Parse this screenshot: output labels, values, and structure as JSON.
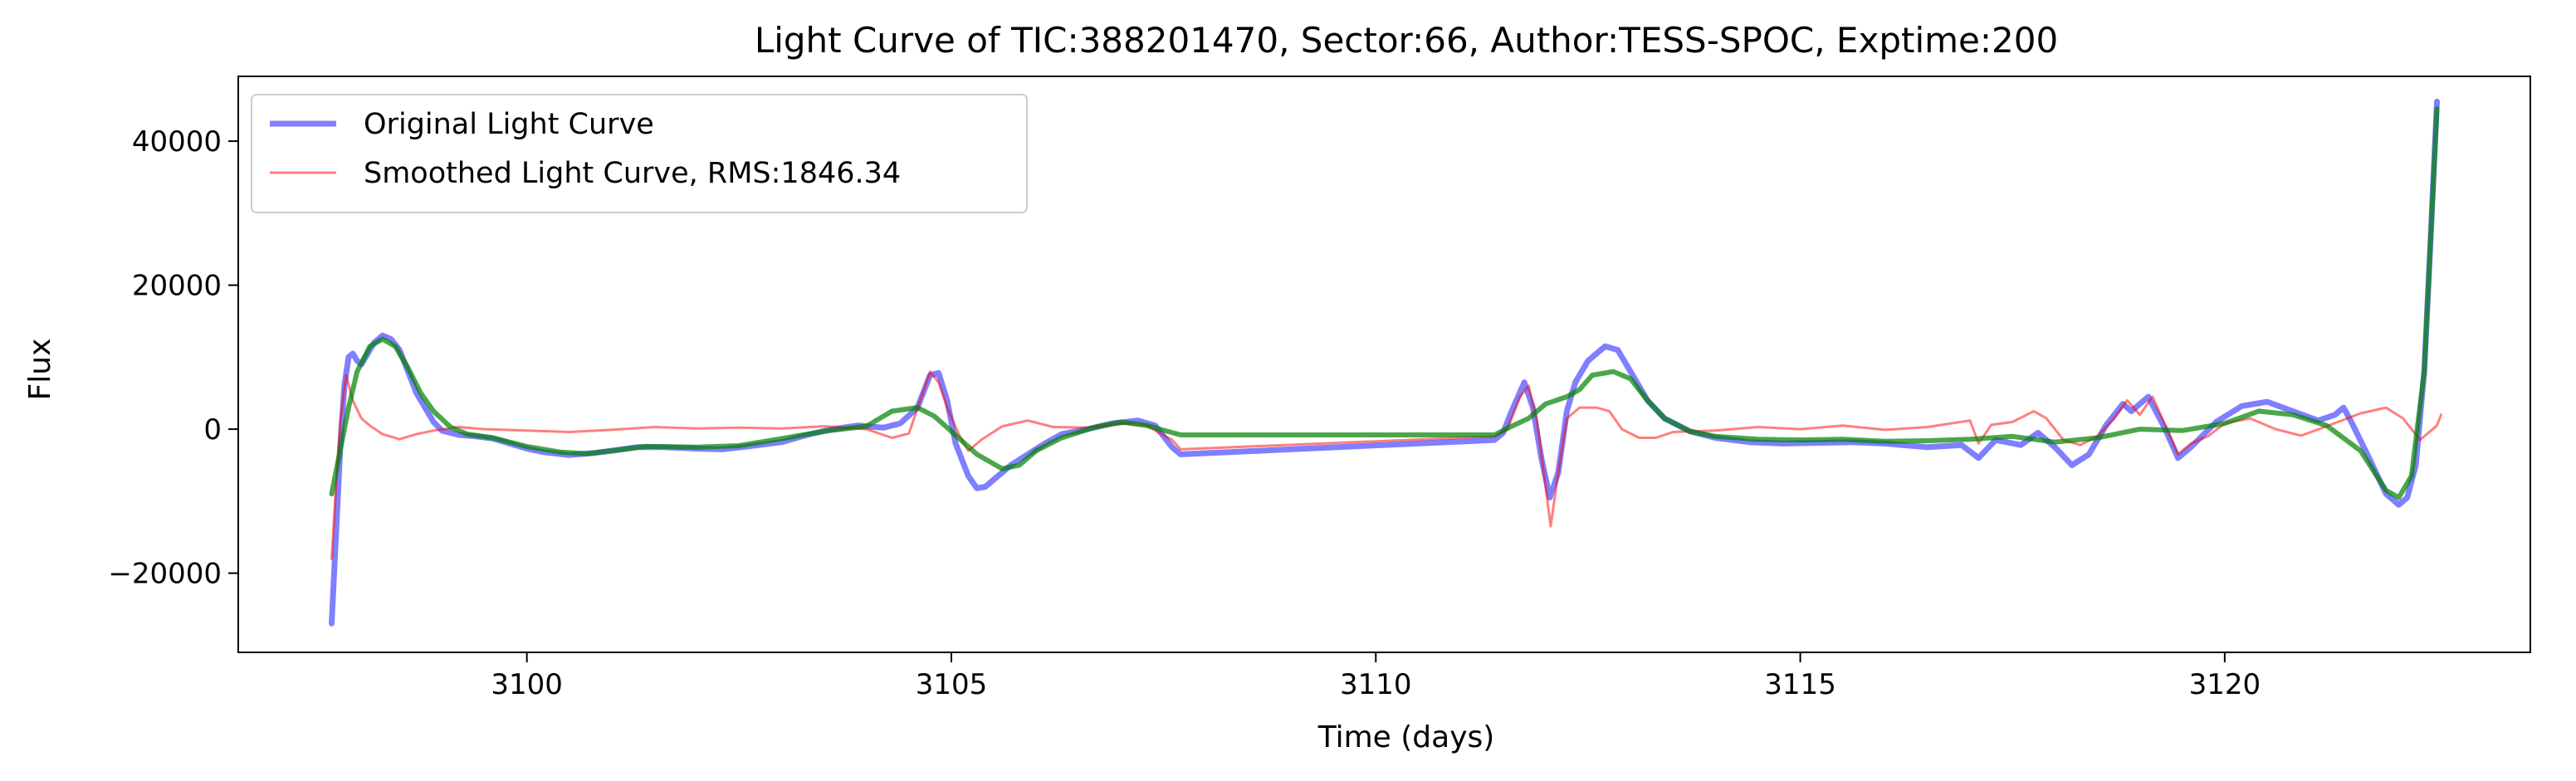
{
  "chart_data": {
    "type": "line",
    "title": "Light Curve of TIC:388201470, Sector:66, Author:TESS-SPOC, Exptime:200",
    "xlabel": "Time (days)",
    "ylabel": "Flux",
    "xlim": [
      3096.6,
      3123.6
    ],
    "ylim": [
      -31000,
      49000
    ],
    "xticks": [
      3100,
      3105,
      3110,
      3115,
      3120
    ],
    "yticks": [
      -20000,
      0,
      20000,
      40000
    ],
    "grid": false,
    "legend_position": "top-left",
    "series": [
      {
        "name": "Original Light Curve",
        "color": "#0000ff",
        "opacity": 0.5,
        "in_legend": true,
        "points": [
          [
            3097.7,
            -27000
          ],
          [
            3097.75,
            -15000
          ],
          [
            3097.8,
            -3000
          ],
          [
            3097.85,
            6000
          ],
          [
            3097.9,
            10000
          ],
          [
            3097.95,
            10500
          ],
          [
            3098.0,
            9500
          ],
          [
            3098.05,
            9000
          ],
          [
            3098.1,
            10000
          ],
          [
            3098.2,
            12000
          ],
          [
            3098.3,
            13000
          ],
          [
            3098.4,
            12500
          ],
          [
            3098.5,
            11000
          ],
          [
            3098.6,
            8000
          ],
          [
            3098.7,
            5000
          ],
          [
            3098.8,
            3000
          ],
          [
            3098.9,
            1000
          ],
          [
            3099.0,
            -200
          ],
          [
            3099.2,
            -800
          ],
          [
            3099.4,
            -1000
          ],
          [
            3099.6,
            -1300
          ],
          [
            3099.8,
            -2000
          ],
          [
            3100.0,
            -2700
          ],
          [
            3100.2,
            -3200
          ],
          [
            3100.5,
            -3600
          ],
          [
            3100.8,
            -3300
          ],
          [
            3101.0,
            -3000
          ],
          [
            3101.3,
            -2500
          ],
          [
            3101.6,
            -2500
          ],
          [
            3102.0,
            -2700
          ],
          [
            3102.3,
            -2800
          ],
          [
            3102.6,
            -2400
          ],
          [
            3103.0,
            -1800
          ],
          [
            3103.3,
            -800
          ],
          [
            3103.6,
            0
          ],
          [
            3103.9,
            500
          ],
          [
            3104.0,
            400
          ],
          [
            3104.2,
            200
          ],
          [
            3104.4,
            800
          ],
          [
            3104.6,
            3000
          ],
          [
            3104.75,
            7500
          ],
          [
            3104.85,
            7800
          ],
          [
            3104.95,
            4000
          ],
          [
            3105.05,
            -2000
          ],
          [
            3105.2,
            -6500
          ],
          [
            3105.3,
            -8200
          ],
          [
            3105.4,
            -8000
          ],
          [
            3105.5,
            -7000
          ],
          [
            3105.7,
            -5000
          ],
          [
            3105.9,
            -3500
          ],
          [
            3106.1,
            -2000
          ],
          [
            3106.3,
            -700
          ],
          [
            3106.6,
            0
          ],
          [
            3106.9,
            800
          ],
          [
            3107.2,
            1200
          ],
          [
            3107.4,
            500
          ],
          [
            3107.6,
            -2500
          ],
          [
            3107.7,
            -3500
          ],
          [
            3111.4,
            -1500
          ],
          [
            3111.5,
            -500
          ],
          [
            3111.6,
            2500
          ],
          [
            3111.75,
            6500
          ],
          [
            3111.85,
            3000
          ],
          [
            3111.95,
            -4000
          ],
          [
            3112.05,
            -9500
          ],
          [
            3112.15,
            -6000
          ],
          [
            3112.25,
            2500
          ],
          [
            3112.35,
            6500
          ],
          [
            3112.5,
            9500
          ],
          [
            3112.7,
            11500
          ],
          [
            3112.85,
            11000
          ],
          [
            3113.0,
            8000
          ],
          [
            3113.2,
            4000
          ],
          [
            3113.4,
            1500
          ],
          [
            3113.7,
            -300
          ],
          [
            3114.0,
            -1200
          ],
          [
            3114.4,
            -1800
          ],
          [
            3114.8,
            -2000
          ],
          [
            3115.2,
            -1900
          ],
          [
            3115.6,
            -1800
          ],
          [
            3116.0,
            -2000
          ],
          [
            3116.5,
            -2500
          ],
          [
            3116.9,
            -2200
          ],
          [
            3117.1,
            -4000
          ],
          [
            3117.3,
            -1500
          ],
          [
            3117.6,
            -2200
          ],
          [
            3117.8,
            -500
          ],
          [
            3118.0,
            -2500
          ],
          [
            3118.2,
            -5000
          ],
          [
            3118.4,
            -3500
          ],
          [
            3118.6,
            500
          ],
          [
            3118.8,
            3500
          ],
          [
            3118.9,
            2500
          ],
          [
            3119.1,
            4500
          ],
          [
            3119.3,
            0
          ],
          [
            3119.45,
            -4000
          ],
          [
            3119.6,
            -2500
          ],
          [
            3119.9,
            1000
          ],
          [
            3120.2,
            3200
          ],
          [
            3120.5,
            3800
          ],
          [
            3120.8,
            2500
          ],
          [
            3121.1,
            1200
          ],
          [
            3121.3,
            2000
          ],
          [
            3121.4,
            3000
          ],
          [
            3121.5,
            800
          ],
          [
            3121.7,
            -4000
          ],
          [
            3121.9,
            -9000
          ],
          [
            3122.05,
            -10500
          ],
          [
            3122.15,
            -9500
          ],
          [
            3122.25,
            -5000
          ],
          [
            3122.35,
            8000
          ],
          [
            3122.42,
            25000
          ],
          [
            3122.5,
            45500
          ]
        ]
      },
      {
        "name": "Smoothed Light Curve, RMS:1846.34",
        "color": "#ff0000",
        "opacity": 0.5,
        "in_legend": true,
        "points": [
          [
            3097.7,
            -18000
          ],
          [
            3097.75,
            -8000
          ],
          [
            3097.8,
            1000
          ],
          [
            3097.87,
            7500
          ],
          [
            3097.95,
            4000
          ],
          [
            3098.05,
            1500
          ],
          [
            3098.15,
            500
          ],
          [
            3098.3,
            -700
          ],
          [
            3098.5,
            -1400
          ],
          [
            3098.7,
            -700
          ],
          [
            3098.9,
            -200
          ],
          [
            3099.2,
            300
          ],
          [
            3099.5,
            0
          ],
          [
            3100.0,
            -200
          ],
          [
            3100.5,
            -400
          ],
          [
            3101.0,
            -100
          ],
          [
            3101.5,
            300
          ],
          [
            3102.0,
            100
          ],
          [
            3102.5,
            200
          ],
          [
            3103.0,
            100
          ],
          [
            3103.5,
            400
          ],
          [
            3104.0,
            0
          ],
          [
            3104.3,
            -1200
          ],
          [
            3104.5,
            -600
          ],
          [
            3104.75,
            8000
          ],
          [
            3104.85,
            6500
          ],
          [
            3104.95,
            3000
          ],
          [
            3105.1,
            -1000
          ],
          [
            3105.2,
            -3000
          ],
          [
            3105.35,
            -1500
          ],
          [
            3105.6,
            400
          ],
          [
            3105.9,
            1200
          ],
          [
            3106.2,
            300
          ],
          [
            3106.6,
            200
          ],
          [
            3107.0,
            800
          ],
          [
            3107.3,
            500
          ],
          [
            3107.6,
            -1500
          ],
          [
            3107.7,
            -2800
          ],
          [
            3111.4,
            -1000
          ],
          [
            3111.55,
            0
          ],
          [
            3111.7,
            4500
          ],
          [
            3111.8,
            6000
          ],
          [
            3111.9,
            1000
          ],
          [
            3112.0,
            -8000
          ],
          [
            3112.06,
            -13500
          ],
          [
            3112.15,
            -6000
          ],
          [
            3112.25,
            1500
          ],
          [
            3112.4,
            3000
          ],
          [
            3112.6,
            3000
          ],
          [
            3112.75,
            2500
          ],
          [
            3112.9,
            0
          ],
          [
            3113.1,
            -1200
          ],
          [
            3113.3,
            -1200
          ],
          [
            3113.5,
            -400
          ],
          [
            3114.0,
            -200
          ],
          [
            3114.5,
            300
          ],
          [
            3115.0,
            0
          ],
          [
            3115.5,
            500
          ],
          [
            3116.0,
            -100
          ],
          [
            3116.5,
            300
          ],
          [
            3117.0,
            1200
          ],
          [
            3117.1,
            -2000
          ],
          [
            3117.25,
            600
          ],
          [
            3117.5,
            1000
          ],
          [
            3117.75,
            2500
          ],
          [
            3117.9,
            1500
          ],
          [
            3118.1,
            -1500
          ],
          [
            3118.3,
            -2200
          ],
          [
            3118.5,
            -1000
          ],
          [
            3118.7,
            1500
          ],
          [
            3118.85,
            4000
          ],
          [
            3119.0,
            2000
          ],
          [
            3119.15,
            4500
          ],
          [
            3119.3,
            500
          ],
          [
            3119.45,
            -3500
          ],
          [
            3119.6,
            -2000
          ],
          [
            3119.8,
            -1000
          ],
          [
            3120.0,
            800
          ],
          [
            3120.3,
            1500
          ],
          [
            3120.6,
            0
          ],
          [
            3120.9,
            -900
          ],
          [
            3121.2,
            400
          ],
          [
            3121.6,
            2200
          ],
          [
            3121.9,
            3000
          ],
          [
            3122.1,
            1500
          ],
          [
            3122.3,
            -1500
          ],
          [
            3122.5,
            500
          ],
          [
            3122.55,
            2000
          ]
        ]
      },
      {
        "name": "",
        "color": "#008000",
        "opacity": 0.7,
        "in_legend": false,
        "points": [
          [
            3097.7,
            -9000
          ],
          [
            3097.8,
            -3000
          ],
          [
            3097.9,
            3000
          ],
          [
            3098.0,
            8000
          ],
          [
            3098.15,
            11500
          ],
          [
            3098.3,
            12500
          ],
          [
            3098.45,
            11500
          ],
          [
            3098.6,
            8500
          ],
          [
            3098.75,
            5000
          ],
          [
            3098.9,
            2500
          ],
          [
            3099.1,
            300
          ],
          [
            3099.3,
            -700
          ],
          [
            3099.6,
            -1200
          ],
          [
            3100.0,
            -2400
          ],
          [
            3100.4,
            -3200
          ],
          [
            3100.7,
            -3400
          ],
          [
            3101.0,
            -3000
          ],
          [
            3101.4,
            -2400
          ],
          [
            3102.0,
            -2500
          ],
          [
            3102.5,
            -2300
          ],
          [
            3103.0,
            -1300
          ],
          [
            3103.5,
            -300
          ],
          [
            3104.0,
            400
          ],
          [
            3104.3,
            2500
          ],
          [
            3104.6,
            3000
          ],
          [
            3104.8,
            1800
          ],
          [
            3105.0,
            -300
          ],
          [
            3105.3,
            -3500
          ],
          [
            3105.6,
            -5500
          ],
          [
            3105.8,
            -5000
          ],
          [
            3106.0,
            -3000
          ],
          [
            3106.3,
            -1200
          ],
          [
            3106.7,
            300
          ],
          [
            3107.0,
            1000
          ],
          [
            3107.3,
            500
          ],
          [
            3107.7,
            -800
          ],
          [
            3111.4,
            -800
          ],
          [
            3111.6,
            400
          ],
          [
            3111.8,
            1500
          ],
          [
            3112.0,
            3500
          ],
          [
            3112.25,
            4500
          ],
          [
            3112.4,
            5500
          ],
          [
            3112.55,
            7500
          ],
          [
            3112.8,
            8000
          ],
          [
            3113.0,
            7000
          ],
          [
            3113.2,
            4000
          ],
          [
            3113.4,
            1500
          ],
          [
            3113.7,
            -300
          ],
          [
            3114.0,
            -1000
          ],
          [
            3114.5,
            -1400
          ],
          [
            3115.0,
            -1500
          ],
          [
            3115.5,
            -1400
          ],
          [
            3116.0,
            -1700
          ],
          [
            3116.5,
            -1600
          ],
          [
            3117.0,
            -1400
          ],
          [
            3117.5,
            -1000
          ],
          [
            3118.0,
            -1800
          ],
          [
            3118.5,
            -1200
          ],
          [
            3119.0,
            0
          ],
          [
            3119.5,
            -200
          ],
          [
            3120.0,
            800
          ],
          [
            3120.4,
            2500
          ],
          [
            3120.8,
            2000
          ],
          [
            3121.2,
            500
          ],
          [
            3121.6,
            -3000
          ],
          [
            3121.9,
            -8500
          ],
          [
            3122.05,
            -9500
          ],
          [
            3122.2,
            -6500
          ],
          [
            3122.35,
            8000
          ],
          [
            3122.42,
            25000
          ],
          [
            3122.5,
            44500
          ]
        ]
      }
    ]
  }
}
